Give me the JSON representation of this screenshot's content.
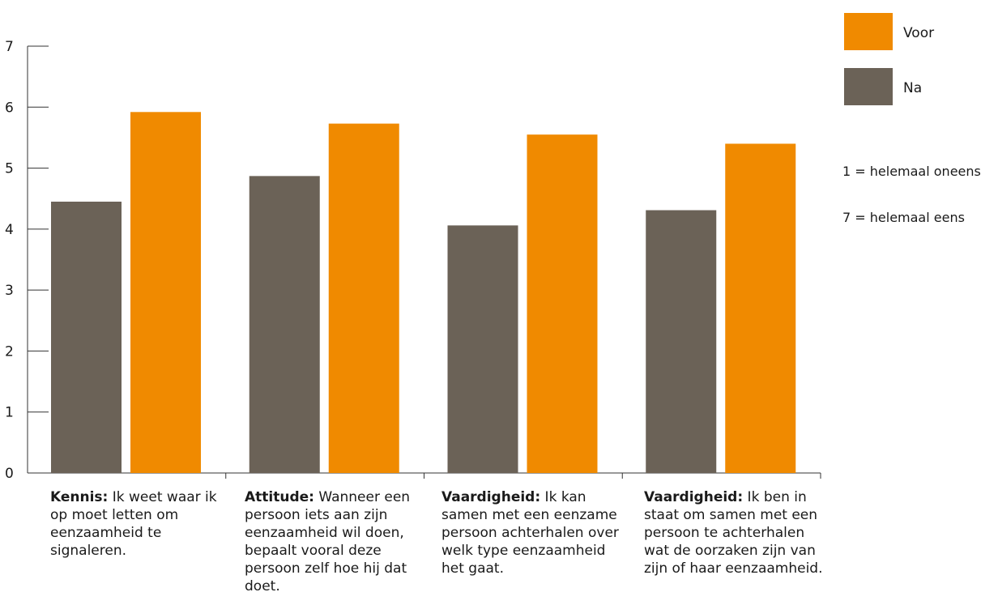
{
  "chart_data": {
    "type": "bar",
    "categories": [
      {
        "bold": "Kennis:",
        "text": " Ik weet waar ik op moet letten om eenzaamheid te signaleren."
      },
      {
        "bold": "Attitude:",
        "text": " Wanneer een persoon iets aan zijn eenzaamheid wil doen, bepaalt vooral deze persoon zelf hoe hij dat doet."
      },
      {
        "bold": "Vaardigheid:",
        "text": " Ik kan samen met een eenzame persoon achterhalen over welk type eenzaamheid het gaat."
      },
      {
        "bold": "Vaardigheid:",
        "text": " Ik ben in staat om samen met een persoon te achterhalen wat de oorzaken zijn van zijn of haar eenzaamheid."
      }
    ],
    "series": [
      {
        "name": "Na",
        "color": "#6b6257",
        "values": [
          4.45,
          4.87,
          4.06,
          4.31
        ]
      },
      {
        "name": "Voor",
        "color": "#f08a00",
        "values": [
          5.92,
          5.73,
          5.55,
          5.4
        ]
      }
    ],
    "ylim": [
      0,
      7
    ],
    "yticks": [
      0,
      1,
      2,
      3,
      4,
      5,
      6,
      7
    ],
    "legend_order": [
      "Voor",
      "Na"
    ],
    "legend_position": "top-right",
    "notes": [
      "1 = helemaal oneens",
      "7 = helemaal eens"
    ],
    "grid": false
  }
}
